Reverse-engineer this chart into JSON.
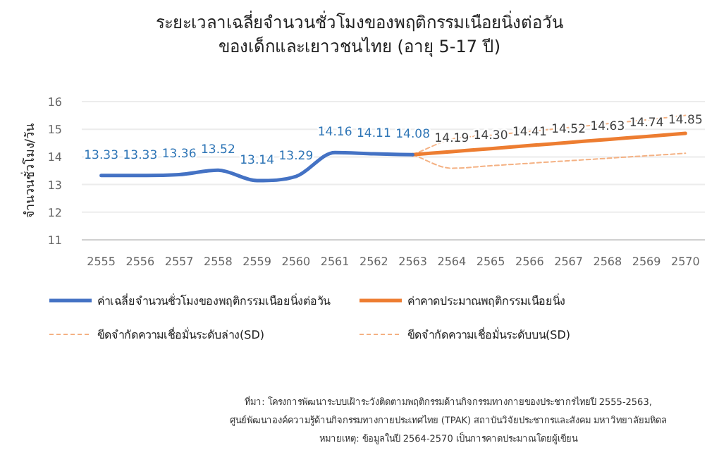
{
  "chart_data": {
    "type": "line",
    "title": "ระยะเวลาเฉลี่ยจำนวนชั่วโมงของพฤติกรรมเนือยนิ่งต่อวัน\nของเด็กและเยาวชนไทย (อายุ 5-17 ปี)",
    "ylabel": "จำนวนชั่วโมง/วัน",
    "categories": [
      "2555",
      "2556",
      "2557",
      "2558",
      "2559",
      "2560",
      "2561",
      "2562",
      "2563",
      "2564",
      "2565",
      "2566",
      "2567",
      "2568",
      "2569",
      "2570"
    ],
    "ylim": [
      11,
      16
    ],
    "yticks": [
      11,
      12,
      13,
      14,
      15,
      16
    ],
    "grid": "y",
    "legend": "bottom",
    "marker": "none",
    "series": [
      {
        "name": "ค่าเฉลี่ยจำนวนชั่วโมงของพฤติกรรมเนือยนิ่งต่อวัน",
        "color": "#4472c4",
        "line_style": "solid",
        "values": [
          13.33,
          13.33,
          13.36,
          13.52,
          13.14,
          13.29,
          14.16,
          14.11,
          14.08,
          null,
          null,
          null,
          null,
          null,
          null,
          null
        ],
        "value_labels": [
          "13.33",
          "13.33",
          "13.36",
          "13.52",
          "13.14",
          "13.29",
          "14.16",
          "14.11",
          "14.08",
          null,
          null,
          null,
          null,
          null,
          null,
          null
        ]
      },
      {
        "name": "ค่าคาดประมาณพฤติกรรมเนือยนิ่ง",
        "color": "#ed7d31",
        "line_style": "solid",
        "values": [
          null,
          null,
          null,
          null,
          null,
          null,
          null,
          null,
          14.08,
          14.19,
          14.3,
          14.41,
          14.52,
          14.63,
          14.74,
          14.85
        ],
        "value_labels": [
          null,
          null,
          null,
          null,
          null,
          null,
          null,
          null,
          null,
          "14.19",
          "14.30",
          "14.41",
          "14.52",
          "14.63",
          "14.74",
          "14.85"
        ]
      },
      {
        "name": "ขีดจำกัดความเชื่อมั่นระดับล่าง(SD)",
        "color": "#f4b183",
        "line_style": "dashed",
        "values": [
          null,
          null,
          null,
          null,
          null,
          null,
          null,
          null,
          14.08,
          13.59,
          13.68,
          13.77,
          13.86,
          13.95,
          14.04,
          14.13
        ]
      },
      {
        "name": "ขีดจำกัดความเชื่อมั่นระดับบน(SD)",
        "color": "#f4b183",
        "line_style": "dashed",
        "values": [
          null,
          null,
          null,
          null,
          null,
          null,
          null,
          null,
          14.08,
          14.64,
          14.78,
          14.92,
          15.06,
          15.2,
          15.34,
          15.5
        ]
      }
    ],
    "annotations": [
      "ที่มา: โครงการพัฒนาระบบเฝ้าระวังติดตามพฤติกรรมด้านกิจกรรมทางกายของประชากรไทยปี 2555-2563,",
      "ศูนย์พัฒนาองค์ความรู้ด้านกิจกรรมทางกายประเทศไทย (TPAK) สถาบันวิจัยประชากรและสังคม มหาวิทยาลัยมหิดล",
      "หมายเหตุ: ข้อมูลในปี 2564-2570 เป็นการคาดประมาณโดยผู้เขียน"
    ]
  }
}
